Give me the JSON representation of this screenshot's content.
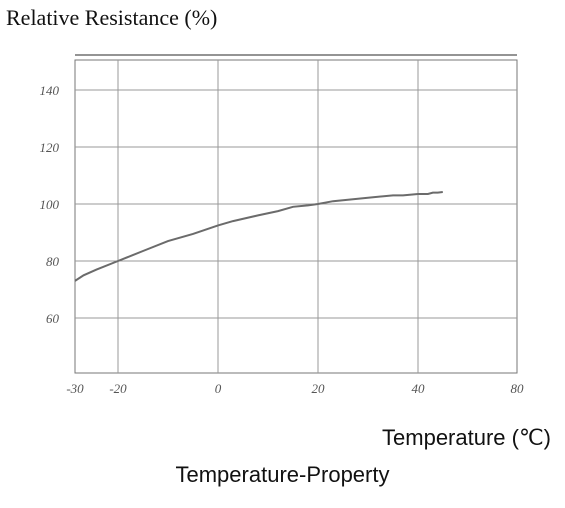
{
  "chart_data": {
    "type": "line",
    "title": "Temperature-Property",
    "ylabel": "Relative Resistance (%)",
    "xlabel": "Temperature (℃)",
    "xlim": [
      -30,
      80
    ],
    "ylim": [
      50,
      140
    ],
    "x_ticks": [
      -30,
      -20,
      0,
      20,
      40,
      80
    ],
    "x_tick_labels": [
      "-30",
      "-20",
      "0",
      "20",
      "40",
      "80"
    ],
    "y_ticks": [
      60,
      80,
      100,
      120,
      140
    ],
    "y_tick_labels": [
      "60",
      "80",
      "100",
      "120",
      "140"
    ],
    "grid": true,
    "line_color": "#6b6b6b",
    "series": [
      {
        "x": [
          -30,
          -28,
          -25,
          -20,
          -15,
          -10,
          -5,
          0,
          3,
          8,
          12,
          15,
          18,
          20,
          23,
          26,
          30,
          35,
          37,
          40,
          44,
          46,
          48,
          50
        ],
        "y": [
          73,
          75,
          77,
          80,
          83.5,
          87,
          89.5,
          92.5,
          94,
          96,
          97.5,
          99,
          99.5,
          100,
          101,
          101.5,
          102.2,
          103,
          103,
          103.5,
          103.5,
          104,
          104,
          104.2
        ]
      }
    ]
  }
}
